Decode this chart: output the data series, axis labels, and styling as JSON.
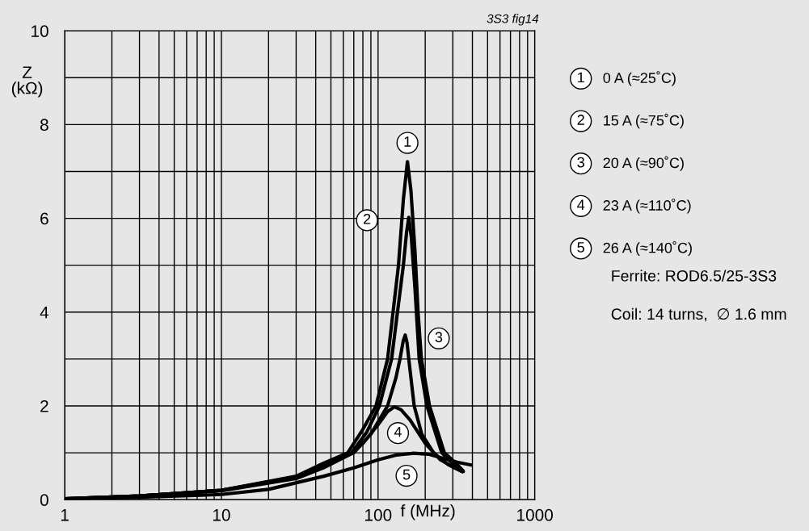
{
  "chart_data": {
    "type": "line",
    "xlabel": "f (MHz)",
    "ylabel": "Z\n(kΩ)",
    "log": "x",
    "grid": true,
    "marker": "none",
    "line_style": "solid",
    "legend": "right",
    "xlim": [
      1,
      1000
    ],
    "ylim": [
      0,
      10
    ],
    "xticks": [
      1,
      {
        "value": 2,
        "label": null
      },
      {
        "value": 3,
        "label": null
      },
      {
        "value": 4,
        "label": null
      },
      {
        "value": 5,
        "label": null
      },
      {
        "value": 6,
        "label": null
      },
      {
        "value": 7,
        "label": null
      },
      {
        "value": 8,
        "label": null
      },
      {
        "value": 9,
        "label": null
      },
      10,
      {
        "value": 20,
        "label": null
      },
      {
        "value": 30,
        "label": null
      },
      {
        "value": 40,
        "label": null
      },
      {
        "value": 50,
        "label": null
      },
      {
        "value": 60,
        "label": null
      },
      {
        "value": 70,
        "label": null
      },
      {
        "value": 80,
        "label": null
      },
      {
        "value": 90,
        "label": null
      },
      100,
      {
        "value": 200,
        "label": null
      },
      {
        "value": 300,
        "label": null
      },
      {
        "value": 400,
        "label": null
      },
      {
        "value": 500,
        "label": null
      },
      {
        "value": 600,
        "label": null
      },
      {
        "value": 700,
        "label": null
      },
      {
        "value": 800,
        "label": null
      },
      {
        "value": 900,
        "label": null
      },
      1000
    ],
    "yticks": [
      0,
      {
        "value": 1,
        "label": null
      },
      2,
      {
        "value": 3,
        "label": null
      },
      4,
      {
        "value": 5,
        "label": null
      },
      6,
      {
        "value": 7,
        "label": null
      },
      8,
      {
        "value": 9,
        "label": null
      },
      10
    ],
    "series": [
      {
        "name": "0 A (≈25˚C)",
        "color": "#000000",
        "x": [
          1,
          3,
          10,
          30,
          45,
          64,
          80,
          97,
          115,
          135,
          145,
          154,
          162,
          172,
          180,
          189,
          213,
          265,
          320,
          348
        ],
        "values": [
          0.02,
          0.08,
          0.2,
          0.5,
          0.78,
          1.0,
          1.5,
          2.0,
          3.0,
          5.0,
          6.4,
          7.21,
          6.6,
          5.3,
          4.0,
          3.0,
          2.0,
          1.0,
          0.75,
          0.62
        ]
      },
      {
        "name": "15 A (≈75˚C)",
        "color": "#000000",
        "x": [
          1,
          3,
          10,
          30,
          45,
          68,
          85,
          102,
          122,
          145,
          152,
          157,
          163,
          172,
          183,
          205,
          255,
          310,
          350
        ],
        "values": [
          0.02,
          0.08,
          0.2,
          0.48,
          0.74,
          1.0,
          1.45,
          2.0,
          3.0,
          5.0,
          5.7,
          6.02,
          5.6,
          4.5,
          3.0,
          2.0,
          1.0,
          0.72,
          0.6
        ]
      },
      {
        "name": "20 A (≈90˚C)",
        "color": "#000000",
        "x": [
          1,
          3,
          10,
          30,
          45,
          70,
          90,
          115,
          130,
          138,
          145,
          149,
          153,
          157,
          170,
          190,
          226,
          280,
          345
        ],
        "values": [
          0.02,
          0.08,
          0.2,
          0.47,
          0.72,
          1.0,
          1.4,
          2.0,
          2.6,
          3.0,
          3.4,
          3.51,
          3.35,
          3.0,
          2.0,
          1.4,
          1.0,
          0.75,
          0.6
        ]
      },
      {
        "name": "23 A (≈110˚C)",
        "color": "#000000",
        "x": [
          1,
          3,
          10,
          30,
          45,
          65,
          80,
          100,
          115,
          127,
          140,
          160,
          200,
          250,
          300,
          345
        ],
        "values": [
          0.02,
          0.08,
          0.19,
          0.45,
          0.68,
          0.95,
          1.2,
          1.6,
          1.88,
          1.98,
          1.92,
          1.7,
          1.2,
          0.85,
          0.7,
          0.6
        ]
      },
      {
        "name": "26 A (≈140˚C)",
        "color": "#000000",
        "x": [
          1,
          3,
          10,
          20,
          45,
          70,
          100,
          130,
          168,
          210,
          250,
          320,
          393
        ],
        "values": [
          0.01,
          0.05,
          0.11,
          0.22,
          0.5,
          0.68,
          0.85,
          0.95,
          0.99,
          0.97,
          0.9,
          0.8,
          0.74
        ]
      }
    ],
    "annotations": [
      {
        "text": "1",
        "x": 154,
        "y": 7.61
      },
      {
        "text": "2",
        "x": 85,
        "y": 5.96
      },
      {
        "text": "3",
        "x": 244,
        "y": 3.44
      },
      {
        "text": "4",
        "x": 134,
        "y": 1.42
      },
      {
        "text": "5",
        "x": 152,
        "y": 0.51
      },
      "3S3 fig14",
      "Ferrite: ROD6.5/25-3S3",
      "Coil: 14 turns,  ∅ 1.6 mm"
    ]
  }
}
